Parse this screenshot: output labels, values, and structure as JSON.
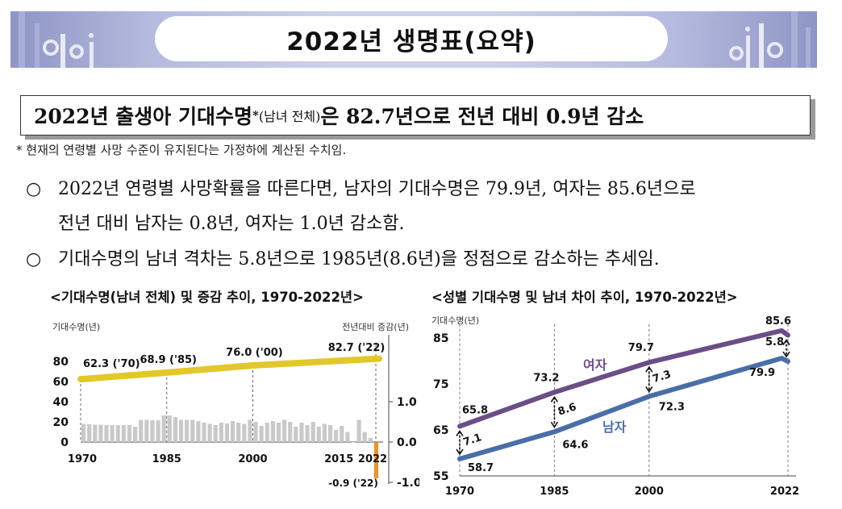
{
  "banner": {
    "title": "2022년 생명표(요약)"
  },
  "headline": {
    "part1": "2022년 출생아 기대수명",
    "star": "*",
    "part2": "(남녀 전체)",
    "part3": "은 82.7년으로 전년 대비 0.9년 감소"
  },
  "footnote": "* 현재의 연령별 사망 수준이 유지된다는 가정하에 계산된 수치임.",
  "bullets": {
    "marker": "○",
    "b1_line1": "2022년 연령별 사망확률을 따른다면, 남자의 기대수명은 79.9년, 여자는 85.6년으로",
    "b1_line2": "전년 대비 남자는 0.8년, 여자는 1.0년 감소함.",
    "b2": "기대수명의 남녀 격차는 5.8년으로 1985년(8.6년)을 정점으로 감소하는 추세임."
  },
  "chart_data": [
    {
      "type": "bar",
      "title": "<기대수명(남녀 전체) 및 증감 추이, 1970-2022년>",
      "ylabel_left": "기대수명(년)",
      "ylabel_right": "전년대비 증감(년)",
      "yticks_left": [
        "80",
        "60",
        "40",
        "20",
        "0"
      ],
      "yticks_right": [
        "1.0",
        "0.0",
        "-1.0"
      ],
      "xticks": [
        "1970",
        "1985",
        "2000",
        "2015",
        "2022"
      ],
      "ylim_left": [
        0,
        85
      ],
      "ylim_right": [
        -1.0,
        2.0
      ],
      "line_series": {
        "x": [
          1970,
          1985,
          2000,
          2022
        ],
        "values": [
          62.3,
          68.9,
          76.0,
          82.7
        ],
        "labels": [
          "62.3 ('70)",
          "68.9 ('85)",
          "76.0 ('00)",
          "82.7 ('22)"
        ],
        "color": "#e2c82a"
      },
      "bar_series": {
        "color": "#c9c9c9",
        "neg_color": "#e8952c",
        "x": [
          1971,
          1972,
          1973,
          1974,
          1975,
          1976,
          1977,
          1978,
          1979,
          1980,
          1981,
          1982,
          1983,
          1984,
          1985,
          1986,
          1987,
          1988,
          1989,
          1990,
          1991,
          1992,
          1993,
          1994,
          1995,
          1996,
          1997,
          1998,
          1999,
          2000,
          2001,
          2002,
          2003,
          2004,
          2005,
          2006,
          2007,
          2008,
          2009,
          2010,
          2011,
          2012,
          2013,
          2014,
          2015,
          2016,
          2017,
          2018,
          2019,
          2020,
          2021,
          2022
        ],
        "values": [
          0.45,
          0.44,
          0.43,
          0.43,
          0.42,
          0.42,
          0.42,
          0.42,
          0.42,
          0.38,
          0.55,
          0.55,
          0.54,
          0.54,
          0.66,
          0.66,
          0.62,
          0.55,
          0.55,
          0.55,
          0.52,
          0.48,
          0.45,
          0.42,
          0.48,
          0.46,
          0.52,
          0.48,
          0.45,
          0.55,
          0.5,
          0.4,
          0.48,
          0.52,
          0.48,
          0.55,
          0.5,
          0.38,
          0.48,
          0.42,
          0.5,
          0.38,
          0.45,
          0.42,
          0.3,
          0.4,
          0.25,
          0.0,
          0.55,
          0.25,
          0.1,
          -0.9
        ]
      },
      "annotation_neg": "-0.9 ('22)"
    },
    {
      "type": "line",
      "title": "<성별 기대수명 및 남녀 차이 추이, 1970-2022년>",
      "ylabel": "기대수명(년)",
      "yticks": [
        "85",
        "75",
        "65",
        "55"
      ],
      "xticks": [
        "1970",
        "1985",
        "2000",
        "2022"
      ],
      "ylim": [
        55,
        87
      ],
      "series": [
        {
          "name": "여자",
          "color": "#6a4f86",
          "x": [
            1970,
            1985,
            2000,
            2021,
            2022
          ],
          "values": [
            65.8,
            73.2,
            79.7,
            86.6,
            85.6
          ]
        },
        {
          "name": "남자",
          "color": "#4a6ea8",
          "x": [
            1970,
            1985,
            2000,
            2021,
            2022
          ],
          "values": [
            58.7,
            64.6,
            72.3,
            80.6,
            79.9
          ]
        }
      ],
      "point_labels": [
        "65.8",
        "73.2",
        "79.7",
        "85.6",
        "58.7",
        "64.6",
        "72.3",
        "79.9"
      ],
      "gaps": [
        {
          "x": 1970,
          "value": "7.1"
        },
        {
          "x": 1985,
          "value": "8.6"
        },
        {
          "x": 2000,
          "value": "7.3"
        },
        {
          "x": 2022,
          "value": "5.8"
        }
      ]
    }
  ]
}
